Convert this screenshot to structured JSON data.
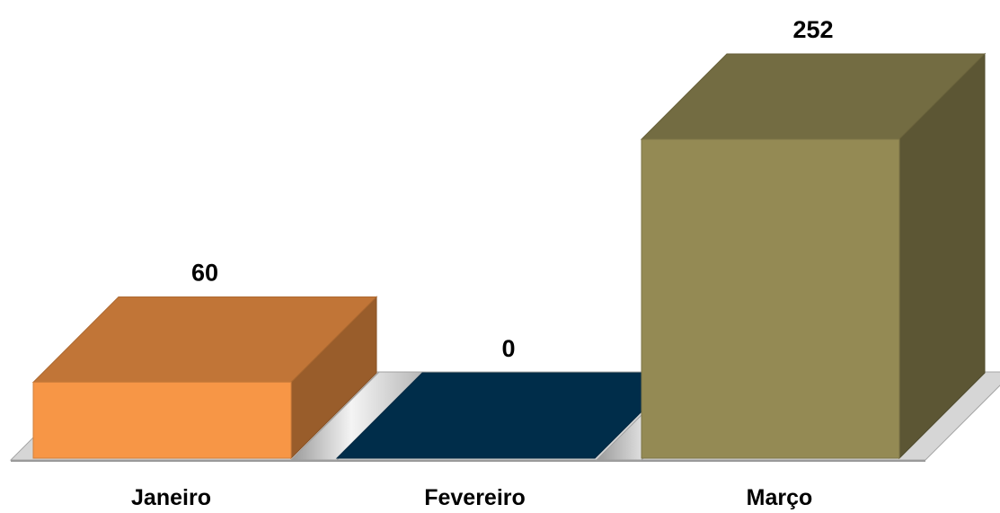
{
  "chart_data": {
    "type": "bar",
    "style": "3d",
    "categories": [
      "Janeiro",
      "Fevereiro",
      "Março"
    ],
    "values": [
      60,
      0,
      252
    ],
    "data_labels": [
      "60",
      "0",
      "252"
    ],
    "colors": {
      "bars": [
        "#F79646",
        "#003A5F",
        "#948A54"
      ],
      "floor": "#D9D9D9"
    },
    "title": "",
    "xlabel": "",
    "ylabel": "",
    "ylim": [
      0,
      252
    ],
    "grid": false,
    "legend": "none"
  }
}
